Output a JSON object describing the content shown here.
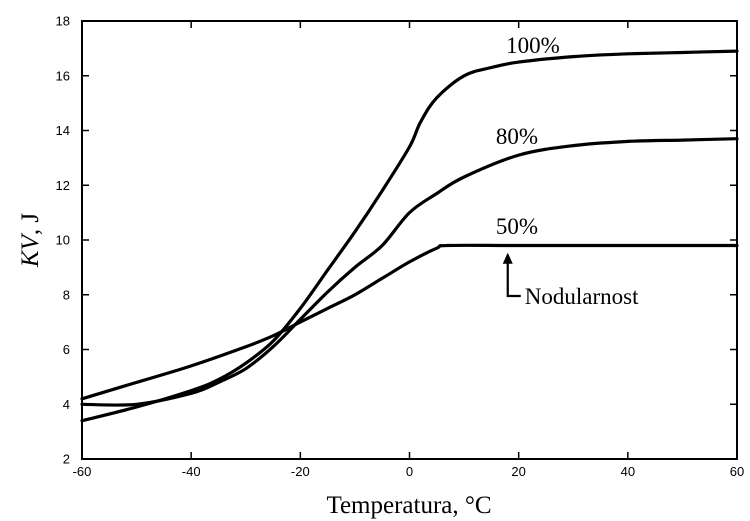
{
  "chart_data": {
    "type": "line",
    "title": "",
    "xlabel": "Temperatura, °C",
    "ylabel_italic": "KV",
    "ylabel_unit": ", J",
    "xlim": [
      -60,
      60
    ],
    "ylim": [
      2,
      18
    ],
    "xticks": [
      -60,
      -40,
      -20,
      0,
      20,
      40,
      60
    ],
    "yticks": [
      2,
      4,
      6,
      8,
      10,
      12,
      14,
      16,
      18
    ],
    "grid": false,
    "series": [
      {
        "name": "100%",
        "x": [
          -60,
          -50,
          -40,
          -35,
          -30,
          -25,
          -20,
          -15,
          -10,
          -5,
          0,
          2,
          5,
          10,
          15,
          20,
          30,
          40,
          50,
          60
        ],
        "y": [
          3.4,
          3.9,
          4.5,
          4.9,
          5.5,
          6.3,
          7.5,
          8.9,
          10.3,
          11.8,
          13.4,
          14.3,
          15.2,
          16.0,
          16.3,
          16.5,
          16.7,
          16.8,
          16.85,
          16.9
        ]
      },
      {
        "name": "80%",
        "x": [
          -60,
          -50,
          -40,
          -35,
          -30,
          -25,
          -20,
          -15,
          -10,
          -5,
          0,
          5,
          10,
          20,
          30,
          40,
          50,
          60
        ],
        "y": [
          4.0,
          4.0,
          4.4,
          4.8,
          5.3,
          6.1,
          7.1,
          8.1,
          9.0,
          9.8,
          11.0,
          11.7,
          12.3,
          13.1,
          13.45,
          13.6,
          13.65,
          13.7
        ]
      },
      {
        "name": "50%",
        "x": [
          -60,
          -50,
          -40,
          -30,
          -25,
          -20,
          -15,
          -10,
          -5,
          0,
          5,
          7,
          20,
          40,
          60
        ],
        "y": [
          4.2,
          4.8,
          5.4,
          6.1,
          6.5,
          7.0,
          7.5,
          8.0,
          8.6,
          9.2,
          9.7,
          9.8,
          9.8,
          9.8,
          9.8
        ]
      }
    ],
    "annotation": {
      "text": "Nodularnost",
      "x": 18,
      "y": 9.5
    }
  }
}
